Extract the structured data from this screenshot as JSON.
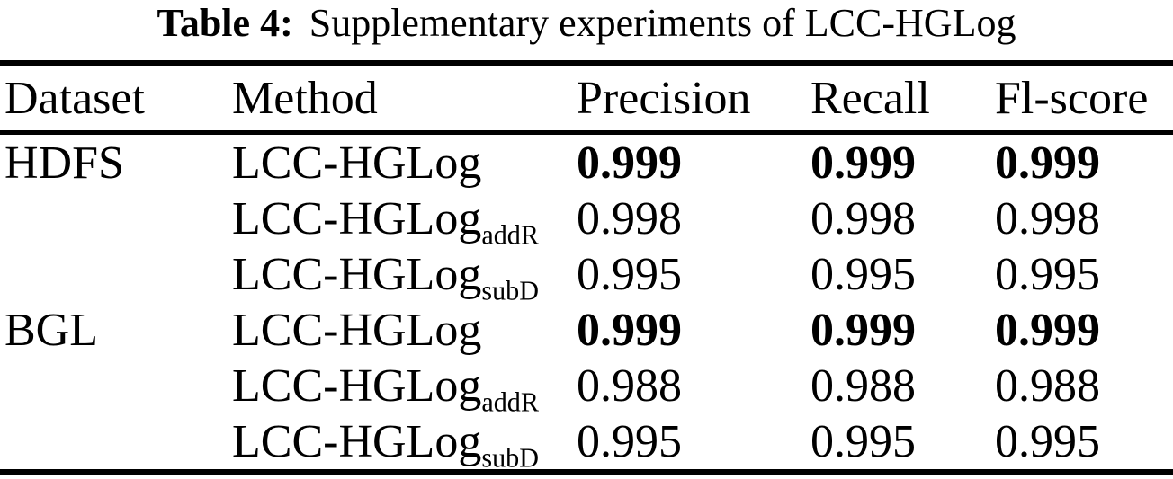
{
  "caption": {
    "label": "Table 4:",
    "text": "Supplementary experiments of LCC-HGLog"
  },
  "table": {
    "headers": {
      "dataset": "Dataset",
      "method": "Method",
      "precision": "Precision",
      "recall": "Recall",
      "f1": "Fl-score"
    },
    "rows": [
      {
        "dataset": "HDFS",
        "method": {
          "base": "LCC-HGLog",
          "sub": ""
        },
        "precision": "0.999",
        "recall": "0.999",
        "f1": "0.999",
        "emphasized": true
      },
      {
        "dataset": "",
        "method": {
          "base": "LCC-HGLog",
          "sub": "addR"
        },
        "precision": "0.998",
        "recall": "0.998",
        "f1": "0.998",
        "emphasized": false
      },
      {
        "dataset": "",
        "method": {
          "base": "LCC-HGLog",
          "sub": "subD"
        },
        "precision": "0.995",
        "recall": "0.995",
        "f1": "0.995",
        "emphasized": false
      },
      {
        "dataset": "BGL",
        "method": {
          "base": "LCC-HGLog",
          "sub": ""
        },
        "precision": "0.999",
        "recall": "0.999",
        "f1": "0.999",
        "emphasized": true
      },
      {
        "dataset": "",
        "method": {
          "base": "LCC-HGLog",
          "sub": "addR"
        },
        "precision": "0.988",
        "recall": "0.988",
        "f1": "0.988",
        "emphasized": false
      },
      {
        "dataset": "",
        "method": {
          "base": "LCC-HGLog",
          "sub": "subD"
        },
        "precision": "0.995",
        "recall": "0.995",
        "f1": "0.995",
        "emphasized": false
      }
    ]
  },
  "colors": {
    "text": "#000000",
    "background": "#ffffff",
    "rule": "#000000"
  }
}
